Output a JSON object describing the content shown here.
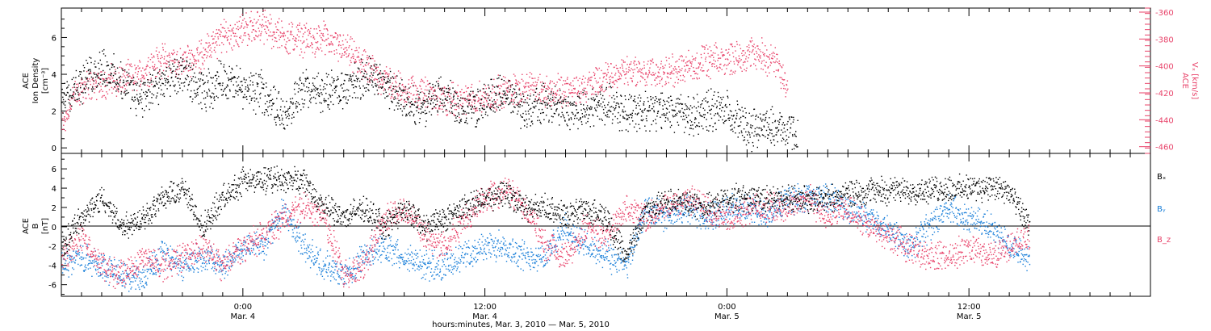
{
  "colors": {
    "black": "#000000",
    "pink": "#e8436a",
    "blue": "#1a7fd9"
  },
  "chart_data": [
    {
      "type": "scatter",
      "panel": "top",
      "ylabel_left": [
        "ACE",
        "Ion Density",
        "[cm⁻³]"
      ],
      "ylabel_right": [
        "ACE",
        "Vₓ [km/s]"
      ],
      "ylim_left": [
        -0.3,
        7.6
      ],
      "ylim_right": [
        -465,
        -357
      ],
      "yticks_left": [
        0,
        2,
        4,
        6
      ],
      "yticks_right": [
        -360,
        -380,
        -400,
        -420,
        -440,
        -460
      ],
      "xlim_hours": [
        0,
        54
      ],
      "series": [
        {
          "name": "Ion Density",
          "axis": "left",
          "color": "#000000",
          "data_end_hour": 36.5,
          "keypoints": [
            [
              0,
              3.0
            ],
            [
              1,
              3.5
            ],
            [
              2,
              4.5
            ],
            [
              3,
              3.5
            ],
            [
              4,
              2.8
            ],
            [
              5,
              3.5
            ],
            [
              6,
              4.0
            ],
            [
              7,
              3.0
            ],
            [
              8,
              3.8
            ],
            [
              9,
              3.2
            ],
            [
              10,
              3.0
            ],
            [
              11,
              1.8
            ],
            [
              12,
              3.2
            ],
            [
              13,
              3.0
            ],
            [
              14,
              3.2
            ],
            [
              15,
              4.0
            ],
            [
              16,
              3.5
            ],
            [
              17,
              2.5
            ],
            [
              18,
              2.2
            ],
            [
              19,
              3.0
            ],
            [
              20,
              2.0
            ],
            [
              21,
              2.5
            ],
            [
              22,
              3.0
            ],
            [
              23,
              2.0
            ],
            [
              24,
              2.5
            ],
            [
              25,
              2.0
            ],
            [
              26,
              2.2
            ],
            [
              27,
              2.5
            ],
            [
              28,
              2.0
            ],
            [
              29,
              2.0
            ],
            [
              30,
              2.2
            ],
            [
              31,
              1.8
            ],
            [
              32,
              2.0
            ],
            [
              33,
              2.0
            ],
            [
              34,
              1.0
            ],
            [
              35,
              1.2
            ],
            [
              36,
              0.8
            ],
            [
              36.5,
              0.8
            ]
          ]
        },
        {
          "name": "Vx",
          "axis": "right",
          "color": "#e8436a",
          "data_end_hour": 36.0,
          "keypoints": [
            [
              0,
              -445
            ],
            [
              0.5,
              -425
            ],
            [
              1,
              -415
            ],
            [
              2,
              -412
            ],
            [
              3,
              -410
            ],
            [
              4,
              -405
            ],
            [
              5,
              -395
            ],
            [
              6,
              -398
            ],
            [
              7,
              -390
            ],
            [
              8,
              -378
            ],
            [
              9,
              -372
            ],
            [
              10,
              -370
            ],
            [
              11,
              -378
            ],
            [
              12,
              -380
            ],
            [
              13,
              -380
            ],
            [
              14,
              -387
            ],
            [
              15,
              -400
            ],
            [
              16,
              -410
            ],
            [
              17,
              -418
            ],
            [
              18,
              -420
            ],
            [
              19,
              -425
            ],
            [
              20,
              -425
            ],
            [
              21,
              -423
            ],
            [
              22,
              -418
            ],
            [
              23,
              -415
            ],
            [
              24,
              -418
            ],
            [
              25,
              -418
            ],
            [
              26,
              -415
            ],
            [
              27,
              -410
            ],
            [
              28,
              -402
            ],
            [
              29,
              -405
            ],
            [
              30,
              -405
            ],
            [
              31,
              -400
            ],
            [
              32,
              -397
            ],
            [
              33,
              -395
            ],
            [
              34,
              -390
            ],
            [
              35,
              -393
            ],
            [
              35.5,
              -400
            ],
            [
              36,
              -420
            ]
          ]
        }
      ]
    },
    {
      "type": "scatter",
      "panel": "bottom",
      "ylabel_left": [
        "ACE",
        "B",
        "[nT]"
      ],
      "ylim": [
        -7.2,
        7.6
      ],
      "yticks": [
        -6,
        -4,
        -2,
        0,
        2,
        4,
        6
      ],
      "xlim_hours": [
        0,
        54
      ],
      "legend": [
        "Bₓ",
        "Bᵧ",
        "B_z"
      ],
      "series": [
        {
          "name": "Bₓ",
          "color": "#000000",
          "data_end_hour": 48.0,
          "keypoints": [
            [
              0,
              -2
            ],
            [
              1,
              1
            ],
            [
              2,
              3
            ],
            [
              3,
              0
            ],
            [
              4,
              1
            ],
            [
              5,
              3
            ],
            [
              6,
              4
            ],
            [
              7,
              0
            ],
            [
              8,
              3
            ],
            [
              9,
              4.8
            ],
            [
              10,
              4.8
            ],
            [
              11,
              5.0
            ],
            [
              12,
              4.8
            ],
            [
              13,
              2
            ],
            [
              14,
              1
            ],
            [
              15,
              2
            ],
            [
              16,
              0
            ],
            [
              17,
              2
            ],
            [
              18,
              0
            ],
            [
              19,
              1
            ],
            [
              20,
              2
            ],
            [
              21,
              3
            ],
            [
              22,
              3.5
            ],
            [
              23,
              2
            ],
            [
              24,
              2
            ],
            [
              25,
              1
            ],
            [
              26,
              2
            ],
            [
              27,
              1
            ],
            [
              28,
              -3
            ],
            [
              29,
              2
            ],
            [
              30,
              2.5
            ],
            [
              31,
              2.5
            ],
            [
              32,
              2
            ],
            [
              33,
              3
            ],
            [
              34,
              3
            ],
            [
              35,
              3
            ],
            [
              36,
              3
            ],
            [
              37,
              3
            ],
            [
              38,
              3
            ],
            [
              39,
              3.5
            ],
            [
              40,
              3.8
            ],
            [
              41,
              3.8
            ],
            [
              42,
              3.8
            ],
            [
              43,
              3.8
            ],
            [
              44,
              4
            ],
            [
              45,
              4
            ],
            [
              46,
              4.2
            ],
            [
              47,
              3.5
            ],
            [
              48,
              0
            ]
          ]
        },
        {
          "name": "Bᵧ",
          "color": "#1a7fd9",
          "data_end_hour": 48.0,
          "keypoints": [
            [
              0,
              -4
            ],
            [
              1,
              -3
            ],
            [
              2,
              -4
            ],
            [
              3,
              -5
            ],
            [
              4,
              -5
            ],
            [
              5,
              -3
            ],
            [
              6,
              -4
            ],
            [
              7,
              -3
            ],
            [
              8,
              -4
            ],
            [
              9,
              -2
            ],
            [
              10,
              -2
            ],
            [
              11,
              2
            ],
            [
              12,
              -2
            ],
            [
              13,
              -4
            ],
            [
              14,
              -5
            ],
            [
              15,
              -3
            ],
            [
              16,
              -2
            ],
            [
              17,
              -3
            ],
            [
              18,
              -4
            ],
            [
              19,
              -4
            ],
            [
              20,
              -3
            ],
            [
              21,
              -2
            ],
            [
              22,
              -2
            ],
            [
              23,
              -3
            ],
            [
              24,
              -3
            ],
            [
              25,
              0
            ],
            [
              26,
              -2
            ],
            [
              27,
              -3
            ],
            [
              28,
              -4
            ],
            [
              29,
              2
            ],
            [
              30,
              1
            ],
            [
              31,
              2
            ],
            [
              32,
              1
            ],
            [
              33,
              2
            ],
            [
              34,
              2
            ],
            [
              35,
              1
            ],
            [
              36,
              3
            ],
            [
              37,
              3
            ],
            [
              38,
              3
            ],
            [
              39,
              2
            ],
            [
              40,
              1
            ],
            [
              41,
              0
            ],
            [
              42,
              -2
            ],
            [
              43,
              0
            ],
            [
              44,
              2
            ],
            [
              45,
              1
            ],
            [
              46,
              0
            ],
            [
              47,
              -2
            ],
            [
              48,
              -3
            ]
          ]
        },
        {
          "name": "B_z",
          "color": "#e8436a",
          "data_end_hour": 48.0,
          "keypoints": [
            [
              0,
              -3
            ],
            [
              1,
              -1
            ],
            [
              2,
              -4
            ],
            [
              3,
              -5
            ],
            [
              4,
              -3
            ],
            [
              5,
              -4
            ],
            [
              6,
              -3
            ],
            [
              7,
              -2
            ],
            [
              8,
              -4
            ],
            [
              9,
              -2
            ],
            [
              10,
              -1
            ],
            [
              11,
              1
            ],
            [
              12,
              2
            ],
            [
              13,
              1
            ],
            [
              14,
              -5
            ],
            [
              15,
              -4
            ],
            [
              16,
              1
            ],
            [
              17,
              2
            ],
            [
              18,
              -1
            ],
            [
              19,
              -2
            ],
            [
              20,
              1
            ],
            [
              21,
              3
            ],
            [
              22,
              4
            ],
            [
              23,
              2
            ],
            [
              24,
              -2
            ],
            [
              25,
              -3
            ],
            [
              26,
              0
            ],
            [
              27,
              -1
            ],
            [
              28,
              2
            ],
            [
              29,
              1
            ],
            [
              30,
              2
            ],
            [
              31,
              3
            ],
            [
              32,
              2
            ],
            [
              33,
              1
            ],
            [
              34,
              2
            ],
            [
              35,
              2
            ],
            [
              36,
              2
            ],
            [
              37,
              3
            ],
            [
              38,
              1
            ],
            [
              39,
              2
            ],
            [
              40,
              0
            ],
            [
              41,
              -1
            ],
            [
              42,
              -2
            ],
            [
              43,
              -3
            ],
            [
              44,
              -3
            ],
            [
              45,
              -2
            ],
            [
              46,
              -3
            ],
            [
              47,
              -2
            ],
            [
              48,
              -1
            ]
          ]
        }
      ]
    }
  ],
  "x_axis": {
    "ticks": [
      {
        "hour": 9.0,
        "time": "0:00",
        "date": "Mar. 4"
      },
      {
        "hour": 21.0,
        "time": "12:00",
        "date": "Mar. 4"
      },
      {
        "hour": 33.0,
        "time": "0:00",
        "date": "Mar. 5"
      },
      {
        "hour": 45.0,
        "time": "12:00",
        "date": "Mar. 5"
      }
    ],
    "label": "hours:minutes, Mar.  3, 2010 — Mar.  5, 2010"
  }
}
